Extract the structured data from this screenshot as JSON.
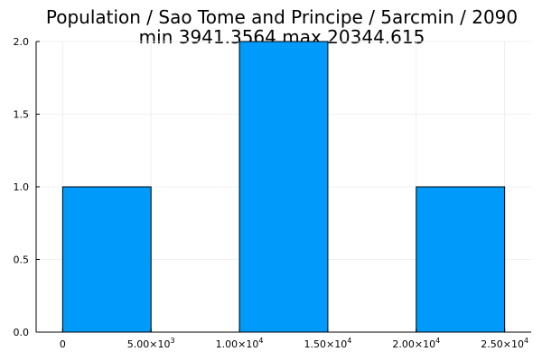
{
  "chart_data": {
    "type": "bar",
    "title": "Population / Sao Tome and Principe / 5arcmin / 2090",
    "subtitle": "min 3941.3564  max 20344.615",
    "xlabel": "",
    "ylabel": "",
    "bin_width": 5000,
    "bins": [
      {
        "start": 0,
        "end": 5000,
        "count": 1
      },
      {
        "start": 5000,
        "end": 10000,
        "count": 0
      },
      {
        "start": 10000,
        "end": 15000,
        "count": 2
      },
      {
        "start": 15000,
        "end": 20000,
        "count": 0
      },
      {
        "start": 20000,
        "end": 25000,
        "count": 1
      }
    ],
    "xlim": [
      -1500,
      26500
    ],
    "ylim": [
      0,
      2
    ],
    "x_ticks": [
      {
        "value": 0,
        "mantissa": "0",
        "exponent": ""
      },
      {
        "value": 5000,
        "mantissa": "5.00×10",
        "exponent": "3"
      },
      {
        "value": 10000,
        "mantissa": "1.00×10",
        "exponent": "4"
      },
      {
        "value": 15000,
        "mantissa": "1.50×10",
        "exponent": "4"
      },
      {
        "value": 20000,
        "mantissa": "2.00×10",
        "exponent": "4"
      },
      {
        "value": 25000,
        "mantissa": "2.50×10",
        "exponent": "4"
      }
    ],
    "y_ticks": [
      {
        "value": 0,
        "label": "0.0"
      },
      {
        "value": 0.5,
        "label": "0.5"
      },
      {
        "value": 1.0,
        "label": "1.0"
      },
      {
        "value": 1.5,
        "label": "1.5"
      },
      {
        "value": 2.0,
        "label": "2.0"
      }
    ],
    "grid": true,
    "legend": "none",
    "colors": {
      "bar_fill": "#009AFA",
      "bar_stroke": "#000000",
      "grid": "#EBEBEB",
      "axis": "#000000",
      "background": "#FFFFFF"
    }
  }
}
